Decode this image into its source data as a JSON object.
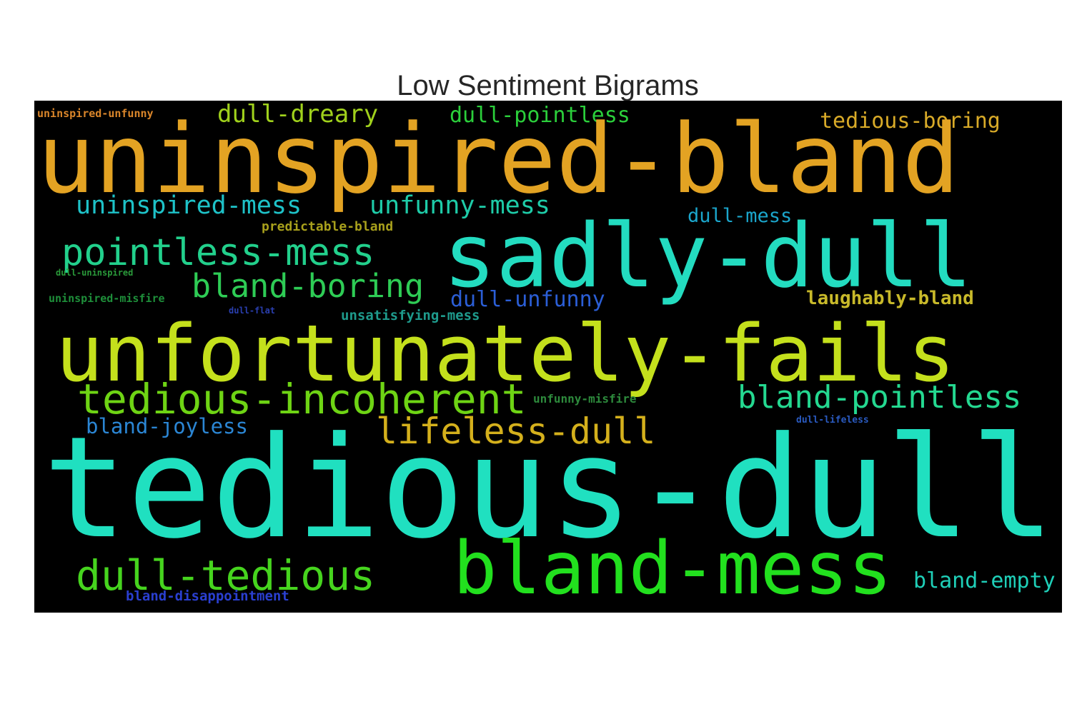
{
  "title": "Low Sentiment Bigrams",
  "words": [
    {
      "text": "uninspired-unfunny",
      "color": "#d9852a"
    },
    {
      "text": "dull-dreary",
      "color": "#a0d11c"
    },
    {
      "text": "dull-pointless",
      "color": "#2bcf3b"
    },
    {
      "text": "tedious-boring",
      "color": "#d8aa28"
    },
    {
      "text": "uninspired-bland",
      "color": "#e3a323"
    },
    {
      "text": "uninspired-mess",
      "color": "#1ec2c8"
    },
    {
      "text": "unfunny-mess",
      "color": "#1ecca8"
    },
    {
      "text": "dull-mess",
      "color": "#1ba6cc"
    },
    {
      "text": "predictable-bland",
      "color": "#a8a01c"
    },
    {
      "text": "sadly-dull",
      "color": "#23dcc0"
    },
    {
      "text": "pointless-mess",
      "color": "#22d08c"
    },
    {
      "text": "dull-uninspired",
      "color": "#2a9a3a"
    },
    {
      "text": "bland-boring",
      "color": "#2ecc55"
    },
    {
      "text": "uninspired-misfire",
      "color": "#1e8f3a"
    },
    {
      "text": "dull-unfunny",
      "color": "#2b5ed6"
    },
    {
      "text": "laughably-bland",
      "color": "#c8b92a"
    },
    {
      "text": "dull-flat",
      "color": "#2a3fb0"
    },
    {
      "text": "unsatisfying-mess",
      "color": "#1e9a8c"
    },
    {
      "text": "unfortunately-fails",
      "color": "#c4e01c"
    },
    {
      "text": "tedious-incoherent",
      "color": "#6ed414"
    },
    {
      "text": "unfunny-misfire",
      "color": "#2d8a3c"
    },
    {
      "text": "bland-pointless",
      "color": "#24d890"
    },
    {
      "text": "bland-joyless",
      "color": "#2b86d4"
    },
    {
      "text": "lifeless-dull",
      "color": "#d4b01c"
    },
    {
      "text": "dull-lifeless",
      "color": "#2a5ac0"
    },
    {
      "text": "tedious-dull",
      "color": "#20e0c0"
    },
    {
      "text": "dull-tedious",
      "color": "#46d41e"
    },
    {
      "text": "bland-mess",
      "color": "#22e01e"
    },
    {
      "text": "bland-empty",
      "color": "#1fcfb8"
    },
    {
      "text": "bland-disappointment",
      "color": "#2a3fd0"
    }
  ]
}
